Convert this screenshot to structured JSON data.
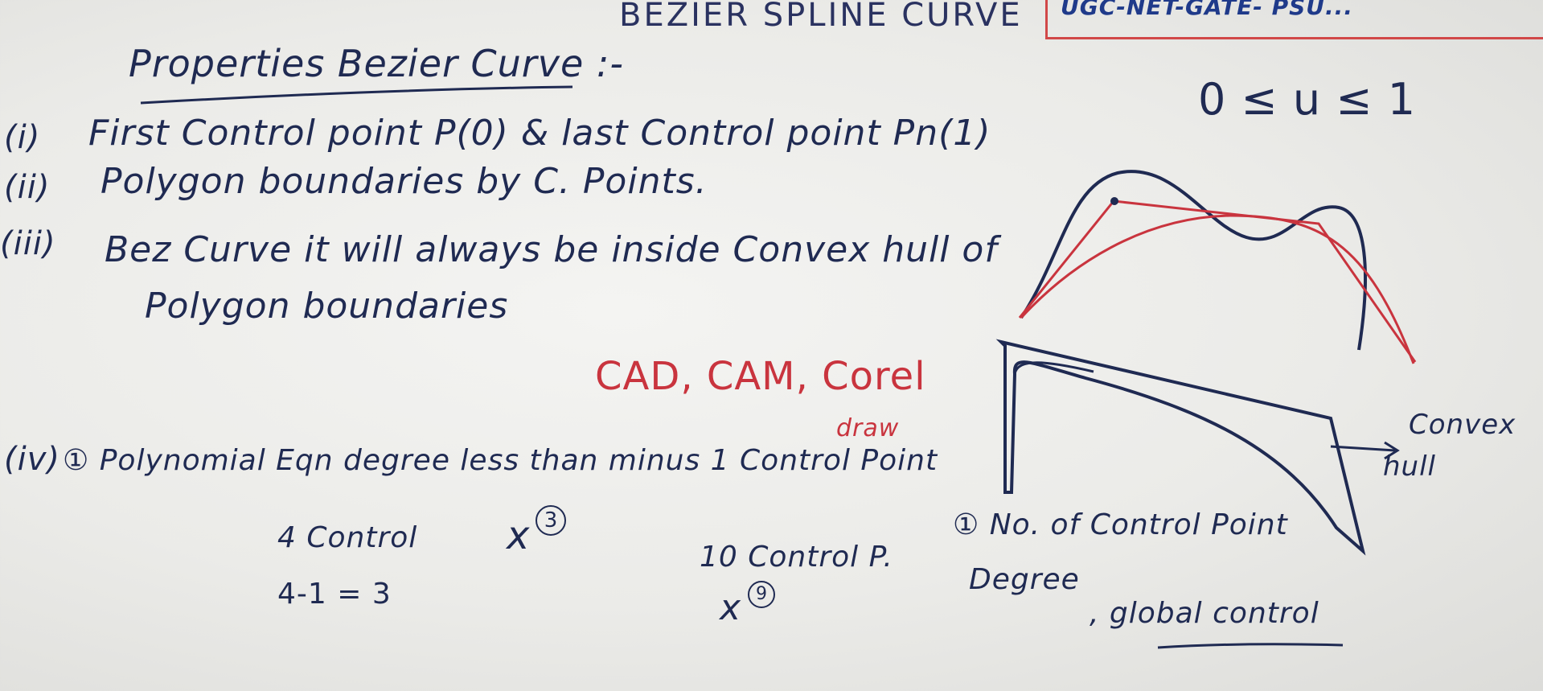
{
  "title": "BEZIER SPLINE CURVE",
  "logo_text": "UGC-NET-GATE- PSU...",
  "heading": "Properties Bezier Curve :-",
  "range": "0 ≤ u ≤ 1",
  "items": [
    {
      "num": "(i)",
      "text": "First Control point P(0) & last Control point Pn(1)"
    },
    {
      "num": "(ii)",
      "text": "Polygon boundaries by C. Points."
    },
    {
      "num": "(iii)",
      "text": "Bez Curve it will always be inside Convex hull of"
    },
    {
      "num": "",
      "text": "Polygon boundaries"
    },
    {
      "num": "(iv)",
      "text": "① Polynomial Eqn degree less than minus 1 Control Point"
    }
  ],
  "red_note": "CAD, CAM, Corel",
  "red_note2": "draw",
  "example1_a": "4 Control",
  "example1_b": "4-1 = 3",
  "x3": "x",
  "x3_exp": "3",
  "example2_a": "10 Control P.",
  "x9": "x",
  "x9_exp": "9",
  "note_b1": "① No. of Control Point",
  "note_b2": "Degree",
  "note_b3": ", global control",
  "convex_label": "Convex",
  "hull_label": "hull",
  "colors": {
    "ink": "#1f2a52",
    "red": "#c9343e"
  }
}
